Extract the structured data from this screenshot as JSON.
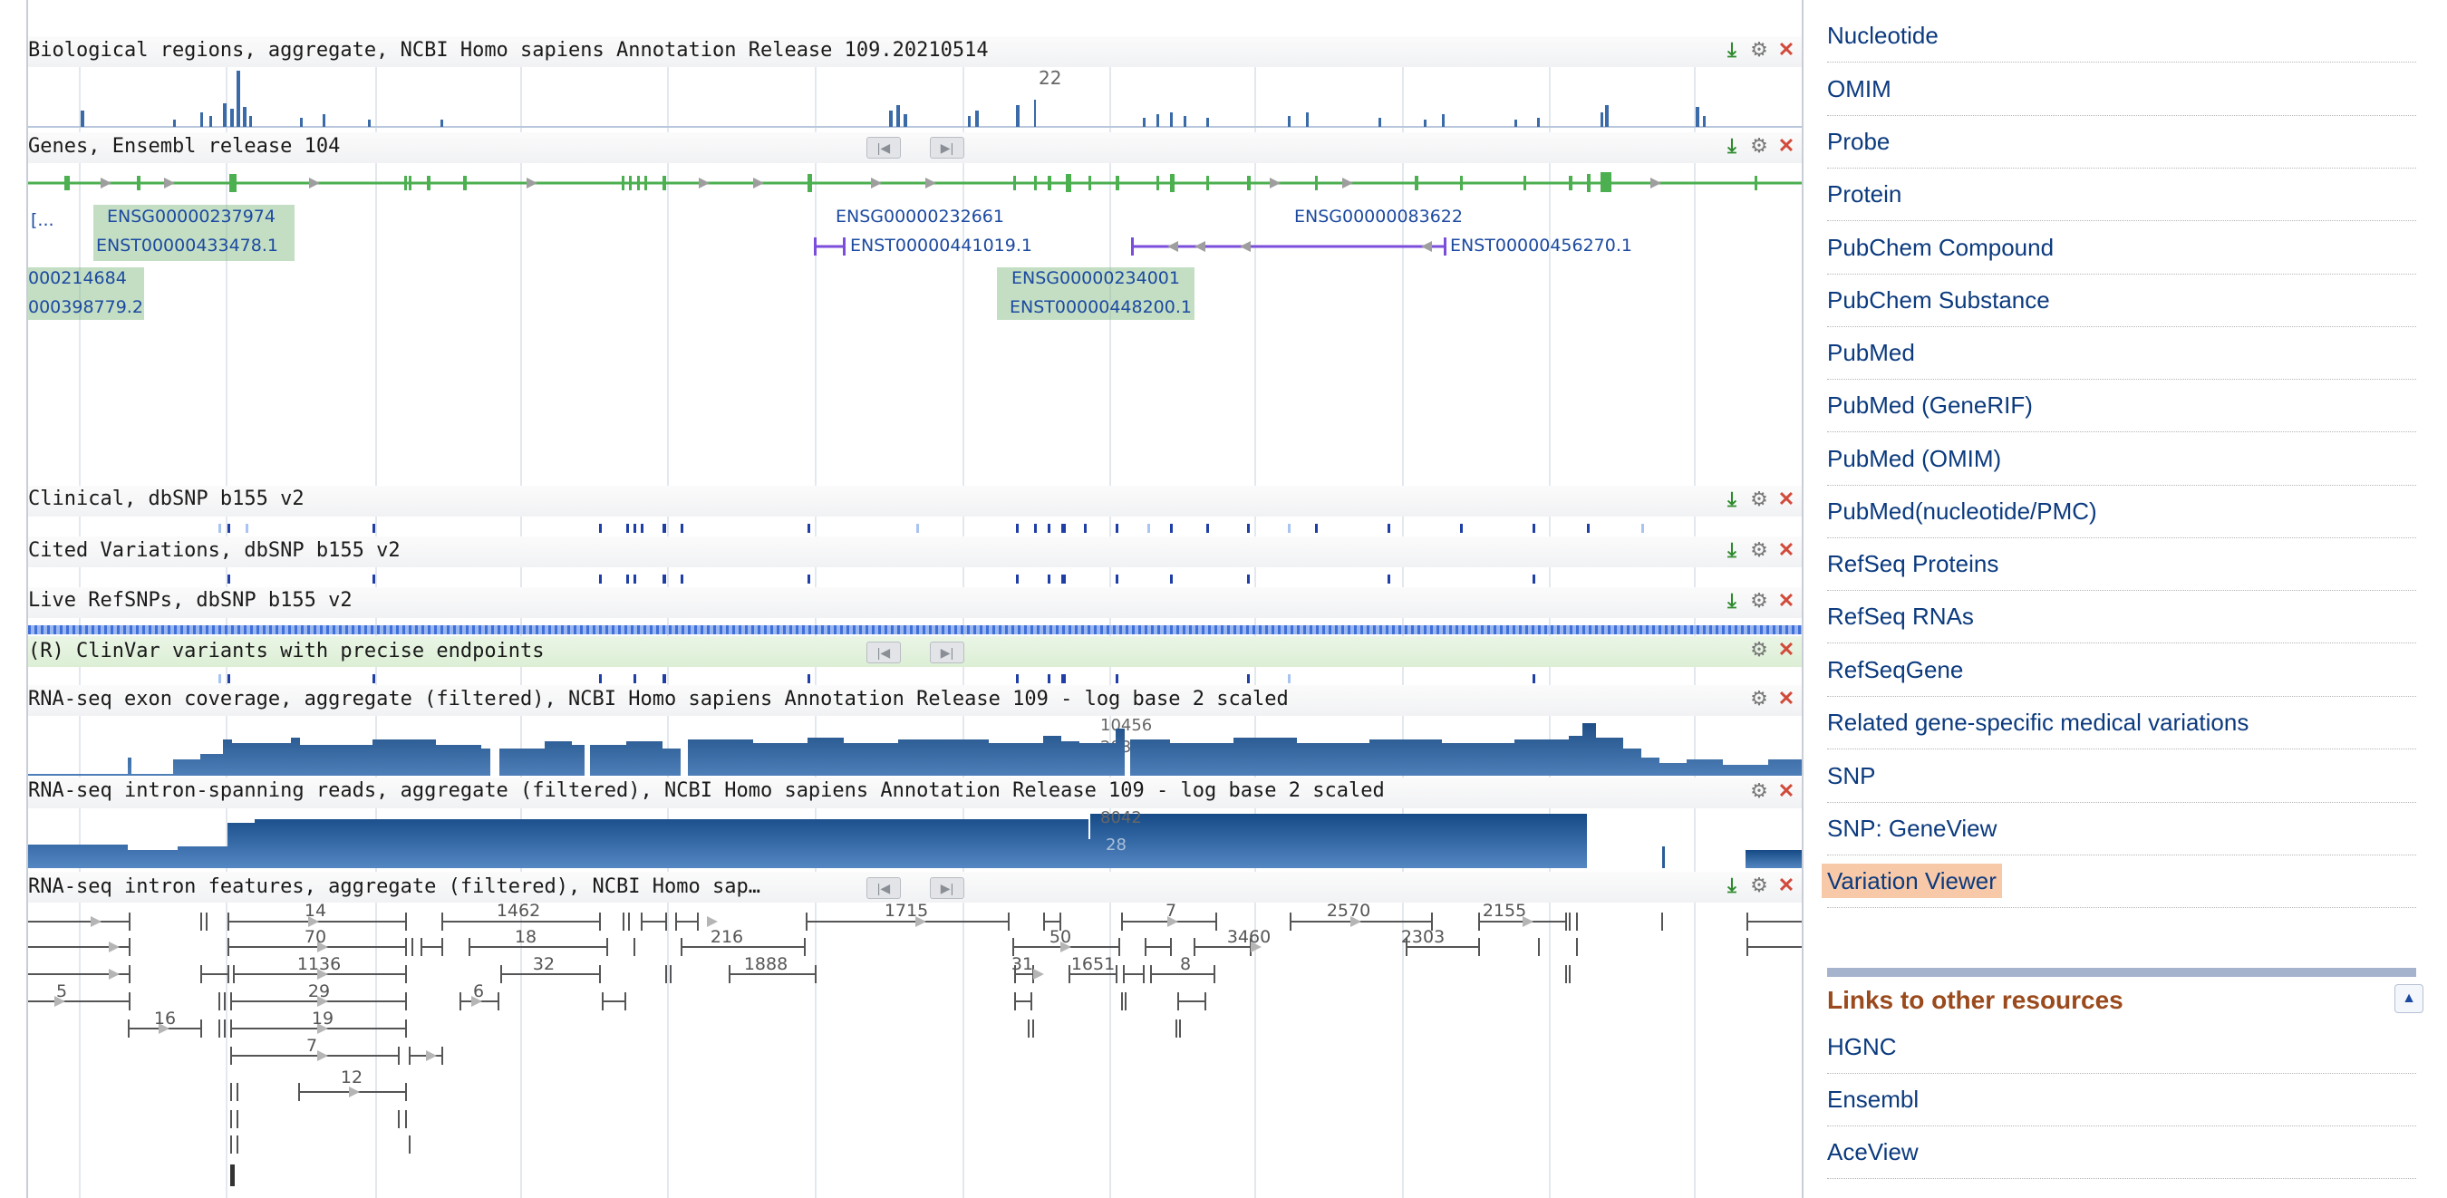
{
  "tracks": {
    "bio_regions": {
      "title": "Biological regions, aggregate, NCBI Homo sapiens Annotation Release 109.20210514",
      "peak": "22"
    },
    "genes": {
      "title": "Genes, Ensembl release 104",
      "left_stub": "[...",
      "labels": {
        "g1": "ENSG00000237974",
        "t1": "ENST00000433478.1",
        "g2": "ENSG00000232661",
        "t2": "ENST00000441019.1",
        "g3": "ENSG00000083622",
        "t3": "ENST00000456270.1",
        "g4": "000214684",
        "t4": "000398779.2",
        "g5": "ENSG00000234001",
        "t5": "ENST00000448200.1"
      }
    },
    "clinical": {
      "title": "Clinical, dbSNP b155 v2"
    },
    "cited": {
      "title": "Cited Variations, dbSNP b155 v2"
    },
    "live": {
      "title": "Live RefSNPs, dbSNP b155 v2"
    },
    "clinvar": {
      "title": "(R) ClinVar variants with precise endpoints"
    },
    "rna_exon": {
      "title": "RNA-seq exon coverage, aggregate (filtered), NCBI Homo sapiens Annotation Release 109 - log base 2 scaled",
      "peak": "10456",
      "peak2": "283"
    },
    "rna_intron_reads": {
      "title": "RNA-seq intron-spanning reads, aggregate (filtered), NCBI Homo sapiens Annotation Release 109 - log base 2 scaled",
      "peak": "8042",
      "peak2": "28"
    },
    "rna_intron_features": {
      "title": "RNA-seq intron features, aggregate (filtered), NCBI Homo sap…",
      "labels": [
        "14",
        "1462",
        "1715",
        "7",
        "2570",
        "2155",
        "70",
        "18",
        "216",
        "50",
        "3460",
        "2303",
        "1136",
        "32",
        "1888",
        "31",
        "1651",
        "8",
        "5",
        "29",
        "6",
        "16",
        "19",
        "7",
        "12"
      ]
    }
  },
  "sidebar": {
    "links": [
      "Nucleotide",
      "OMIM",
      "Probe",
      "Protein",
      "PubChem Compound",
      "PubChem Substance",
      "PubMed",
      "PubMed (GeneRIF)",
      "PubMed (OMIM)",
      "PubMed(nucleotide/PMC)",
      "RefSeq Proteins",
      "RefSeq RNAs",
      "RefSeqGene",
      "Related gene-specific medical variations",
      "SNP",
      "SNP: GeneView",
      "Variation Viewer"
    ],
    "highlighted": "Variation Viewer",
    "other_title": "Links to other resources",
    "other_links": [
      "HGNC",
      "Ensembl",
      "AceView"
    ]
  },
  "icons": {
    "download": "download-icon",
    "settings": "gear-icon",
    "close": "close-icon",
    "prev": "prev-icon",
    "next": "next-icon",
    "collapse": "collapse-icon"
  },
  "colors": {
    "gene_green": "#4caf50",
    "transcript_purple": "#7b4ddb",
    "snp_blue": "#1f3fa6",
    "coverage_blue": "#2a5c97",
    "highlight": "#f8c9a8",
    "section_title": "#9a4a1c"
  }
}
